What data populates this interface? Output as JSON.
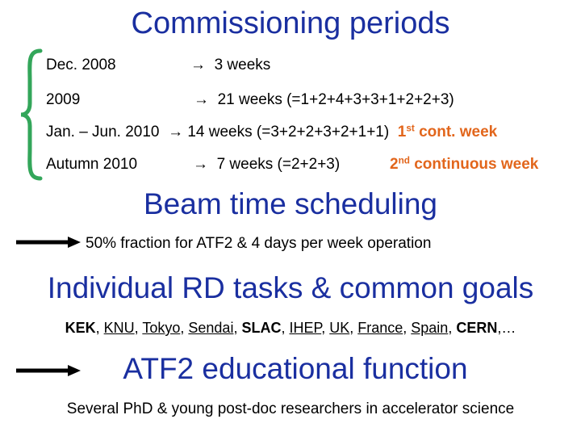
{
  "title": "Commissioning periods",
  "periods": [
    {
      "label": "Dec. 2008",
      "arrow": "→",
      "duration": "3 weeks"
    },
    {
      "label": "2009",
      "arrow": "→",
      "duration": "21 weeks (=1+2+4+3+3+1+2+2+3)"
    },
    {
      "label": "Jan. – Jun. 2010",
      "arrow": "→",
      "duration": "14 weeks (=3+2+2+3+2+1+1)",
      "note_main": "1",
      "note_sup": "st",
      "note_rest": " cont. week"
    },
    {
      "label": "Autumn 2010",
      "arrow": "→",
      "duration": "7 weeks (=2+2+3)",
      "note_main": "2",
      "note_sup": "nd",
      "note_rest": " continuous week"
    }
  ],
  "beam": {
    "heading": "Beam time scheduling",
    "text": "50% fraction for ATF2  &  4 days per week operation"
  },
  "rd": {
    "heading": "Individual RD tasks & common goals",
    "institutes": [
      {
        "name": "KEK",
        "style": "bold"
      },
      {
        "name": "KNU",
        "style": "underline"
      },
      {
        "name": "Tokyo",
        "style": "underline"
      },
      {
        "name": "Sendai",
        "style": "underline"
      },
      {
        "name": "SLAC",
        "style": "bold"
      },
      {
        "name": "IHEP",
        "style": "underline"
      },
      {
        "name": "UK",
        "style": "underline"
      },
      {
        "name": "France",
        "style": "underline"
      },
      {
        "name": "Spain",
        "style": "underline"
      },
      {
        "name": "CERN",
        "style": "bold"
      }
    ],
    "separator": ", ",
    "ellipsis": ",…"
  },
  "edu": {
    "heading": "ATF2 educational function",
    "text": "Several PhD  & young post-doc researchers in accelerator science"
  },
  "colors": {
    "heading": "#1a2fa0",
    "note": "#e2661c",
    "brace": "#33a65a"
  }
}
